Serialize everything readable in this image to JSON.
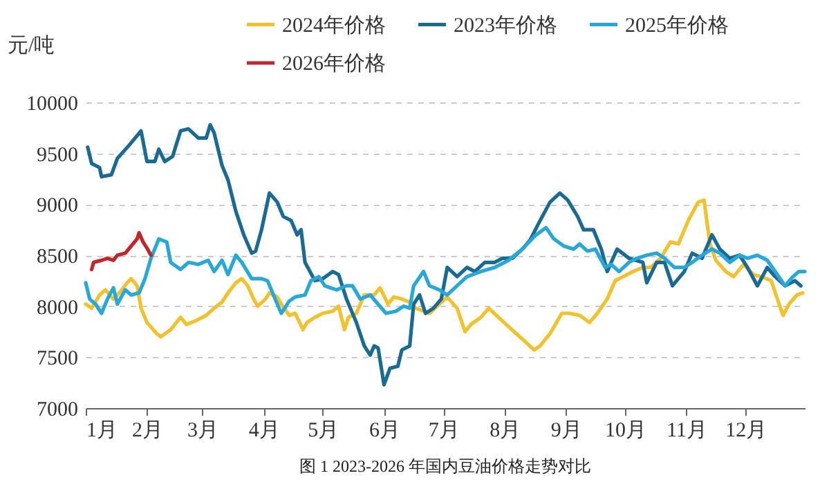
{
  "chart_data": {
    "type": "line",
    "ylabel": "元/吨",
    "annotations": [
      "图 1 2023-2026 年国内豆油价格走势对比"
    ],
    "xlim": [
      "--01-01",
      "--12-31"
    ],
    "xticks": [
      {
        "value": "--01-01",
        "label": "1月"
      },
      {
        "value": "--02-01",
        "label": "2月"
      },
      {
        "value": "--03-01",
        "label": "3月"
      },
      {
        "value": "--04-01",
        "label": "4月"
      },
      {
        "value": "--05-01",
        "label": "5月"
      },
      {
        "value": "--06-01",
        "label": "6月"
      },
      {
        "value": "--07-01",
        "label": "7月"
      },
      {
        "value": "--08-01",
        "label": "8月"
      },
      {
        "value": "--09-01",
        "label": "9月"
      },
      {
        "value": "--10-01",
        "label": "10月"
      },
      {
        "value": "--11-01",
        "label": "11月"
      },
      {
        "value": "--12-01",
        "label": "12月"
      }
    ],
    "ylim": [
      7000,
      10000
    ],
    "yticks": [
      7000,
      7500,
      8000,
      8500,
      9000,
      9500,
      10000
    ],
    "grid": "y",
    "legend": "top",
    "marker": "none",
    "line_style": "solid",
    "series": [
      {
        "name": "2024年价格",
        "color": "#f2c12e",
        "x": [
          "--01-01",
          "--01-04",
          "--01-08",
          "--01-11",
          "--01-15",
          "--01-18",
          "--01-22",
          "--01-24",
          "--01-27",
          "--01-29",
          "--02-01",
          "--02-06",
          "--02-08",
          "--02-13",
          "--02-18",
          "--02-21",
          "--02-26",
          "--03-03",
          "--03-07",
          "--03-11",
          "--03-14",
          "--03-18",
          "--03-21",
          "--03-24",
          "--03-27",
          "--03-29",
          "--04-02",
          "--04-04",
          "--04-08",
          "--04-10",
          "--04-14",
          "--04-17",
          "--04-21",
          "--04-23",
          "--04-27",
          "--05-01",
          "--05-06",
          "--05-09",
          "--05-12",
          "--05-14",
          "--05-18",
          "--05-22",
          "--05-27",
          "--05-30",
          "--06-03",
          "--06-06",
          "--06-10",
          "--06-14",
          "--06-17",
          "--06-24",
          "--06-29",
          "--07-03",
          "--07-08",
          "--07-12",
          "--07-15",
          "--07-20",
          "--07-24",
          "--07-29",
          "--08-03",
          "--08-07",
          "--08-11",
          "--08-16",
          "--08-19",
          "--08-24",
          "--08-30",
          "--09-03",
          "--09-08",
          "--09-13",
          "--09-17",
          "--09-22",
          "--09-26",
          "--09-30",
          "--10-05",
          "--10-10",
          "--10-14",
          "--10-19",
          "--10-24",
          "--10-28",
          "--11-02",
          "--11-07",
          "--11-10",
          "--11-13",
          "--11-16",
          "--11-21",
          "--11-25",
          "--11-30",
          "--12-05",
          "--12-09",
          "--12-14",
          "--12-18",
          "--12-20",
          "--12-23",
          "--12-27",
          "--12-30"
        ],
        "values": [
          8020,
          7980,
          8110,
          8160,
          8070,
          8130,
          8230,
          8270,
          8200,
          7980,
          7840,
          7730,
          7700,
          7770,
          7890,
          7820,
          7860,
          7910,
          7980,
          8040,
          8130,
          8230,
          8270,
          8200,
          8070,
          8000,
          8070,
          8130,
          8090,
          8020,
          7910,
          7930,
          7770,
          7840,
          7890,
          7930,
          7950,
          8000,
          7770,
          7890,
          7930,
          8110,
          8110,
          8180,
          8020,
          8090,
          8070,
          8040,
          7980,
          7930,
          8020,
          8090,
          7980,
          7750,
          7820,
          7890,
          7980,
          7890,
          7800,
          7730,
          7660,
          7570,
          7610,
          7730,
          7930,
          7930,
          7910,
          7840,
          7930,
          8070,
          8250,
          8290,
          8340,
          8380,
          8380,
          8470,
          8630,
          8610,
          8840,
          9020,
          9040,
          8610,
          8450,
          8340,
          8290,
          8410,
          8310,
          8290,
          8250,
          8020,
          7910,
          8020,
          8110,
          8130
        ]
      },
      {
        "name": "2023年价格",
        "color": "#1b6a93",
        "x": [
          "--01-02",
          "--01-04",
          "--01-08",
          "--01-09",
          "--01-14",
          "--01-17",
          "--01-23",
          "--01-29",
          "--02-01",
          "--02-05",
          "--02-07",
          "--02-10",
          "--02-14",
          "--02-18",
          "--02-22",
          "--02-27",
          "--03-03",
          "--03-05",
          "--03-07",
          "--03-11",
          "--03-14",
          "--03-18",
          "--03-22",
          "--03-26",
          "--03-28",
          "--03-31",
          "--04-04",
          "--04-08",
          "--04-11",
          "--04-15",
          "--04-18",
          "--04-20",
          "--04-22",
          "--04-27",
          "--05-01",
          "--05-06",
          "--05-09",
          "--05-13",
          "--05-18",
          "--05-22",
          "--05-25",
          "--05-27",
          "--05-29",
          "--06-01",
          "--06-04",
          "--06-08",
          "--06-10",
          "--06-14",
          "--06-16",
          "--06-19",
          "--06-22",
          "--06-26",
          "--06-30",
          "--07-03",
          "--07-08",
          "--07-13",
          "--07-17",
          "--07-22",
          "--07-27",
          "--07-31",
          "--08-05",
          "--08-10",
          "--08-14",
          "--08-19",
          "--08-24",
          "--08-29",
          "--09-02",
          "--09-07",
          "--09-10",
          "--09-15",
          "--09-19",
          "--09-22",
          "--09-27",
          "--10-03",
          "--10-10",
          "--10-12",
          "--10-17",
          "--10-21",
          "--10-25",
          "--10-31",
          "--11-04",
          "--11-09",
          "--11-14",
          "--11-18",
          "--11-23",
          "--11-28",
          "--12-02",
          "--12-07",
          "--12-12",
          "--12-16",
          "--12-21",
          "--12-26",
          "--12-29"
        ],
        "values": [
          9560,
          9400,
          9360,
          9270,
          9290,
          9450,
          9580,
          9720,
          9420,
          9420,
          9540,
          9420,
          9470,
          9720,
          9740,
          9650,
          9650,
          9780,
          9700,
          9380,
          9240,
          8930,
          8700,
          8520,
          8540,
          8750,
          9110,
          9020,
          8880,
          8840,
          8700,
          8750,
          8430,
          8250,
          8270,
          8340,
          8310,
          8070,
          7840,
          7610,
          7520,
          7610,
          7590,
          7230,
          7390,
          7410,
          7570,
          7610,
          8020,
          8110,
          7930,
          7980,
          8070,
          8380,
          8290,
          8380,
          8340,
          8430,
          8430,
          8470,
          8470,
          8560,
          8650,
          8840,
          9020,
          9110,
          9040,
          8880,
          8750,
          8750,
          8560,
          8340,
          8560,
          8470,
          8430,
          8230,
          8430,
          8430,
          8200,
          8340,
          8520,
          8470,
          8700,
          8560,
          8470,
          8500,
          8380,
          8200,
          8380,
          8290,
          8200,
          8250,
          8200
        ]
      },
      {
        "name": "2025年价格",
        "color": "#29a8d8",
        "x": [
          "--01-01",
          "--01-03",
          "--01-06",
          "--01-09",
          "--01-12",
          "--01-15",
          "--01-17",
          "--01-21",
          "--01-24",
          "--01-28",
          "--01-31",
          "--02-03",
          "--02-07",
          "--02-11",
          "--02-13",
          "--02-18",
          "--02-22",
          "--02-27",
          "--03-04",
          "--03-07",
          "--03-11",
          "--03-14",
          "--03-18",
          "--03-21",
          "--03-26",
          "--03-31",
          "--04-03",
          "--04-08",
          "--04-10",
          "--04-14",
          "--04-17",
          "--04-22",
          "--04-25",
          "--04-29",
          "--05-02",
          "--05-08",
          "--05-13",
          "--05-16",
          "--05-20",
          "--05-25",
          "--05-29",
          "--06-02",
          "--06-07",
          "--06-11",
          "--06-14",
          "--06-16",
          "--06-21",
          "--06-24",
          "--06-29",
          "--07-03",
          "--07-08",
          "--07-13",
          "--07-20",
          "--07-27",
          "--08-03",
          "--08-10",
          "--08-17",
          "--08-22",
          "--08-26",
          "--08-31",
          "--09-05",
          "--09-08",
          "--09-12",
          "--09-16",
          "--09-21",
          "--09-24",
          "--09-28",
          "--10-03",
          "--10-07",
          "--10-12",
          "--10-17",
          "--10-21",
          "--10-26",
          "--10-31",
          "--11-04",
          "--11-09",
          "--11-14",
          "--11-18",
          "--11-23",
          "--11-28",
          "--12-02",
          "--12-07",
          "--12-12",
          "--12-16",
          "--12-21",
          "--12-25",
          "--12-28",
          "--12-31"
        ],
        "values": [
          8230,
          8070,
          8020,
          7930,
          8070,
          8180,
          8020,
          8160,
          8110,
          8130,
          8270,
          8470,
          8660,
          8630,
          8430,
          8360,
          8430,
          8410,
          8450,
          8340,
          8450,
          8310,
          8500,
          8430,
          8270,
          8270,
          8250,
          8020,
          7930,
          8050,
          8090,
          8110,
          8250,
          8290,
          8200,
          8160,
          8200,
          8200,
          8070,
          8110,
          8020,
          7930,
          7950,
          8000,
          7980,
          8200,
          8340,
          8200,
          8160,
          8110,
          8200,
          8290,
          8340,
          8380,
          8450,
          8560,
          8700,
          8770,
          8660,
          8590,
          8560,
          8610,
          8540,
          8560,
          8380,
          8410,
          8340,
          8430,
          8470,
          8500,
          8520,
          8470,
          8380,
          8380,
          8430,
          8500,
          8560,
          8520,
          8430,
          8500,
          8470,
          8500,
          8450,
          8340,
          8200,
          8290,
          8340,
          8340
        ]
      },
      {
        "name": "2026年价格",
        "color": "#c0272d",
        "x": [
          "--01-04",
          "--01-05",
          "--01-09",
          "--01-12",
          "--01-15",
          "--01-17",
          "--01-21",
          "--01-24",
          "--01-27",
          "--01-28",
          "--01-30",
          "--02-01",
          "--02-03"
        ],
        "values": [
          8360,
          8430,
          8450,
          8470,
          8450,
          8500,
          8520,
          8590,
          8660,
          8720,
          8630,
          8570,
          8500
        ]
      }
    ]
  }
}
